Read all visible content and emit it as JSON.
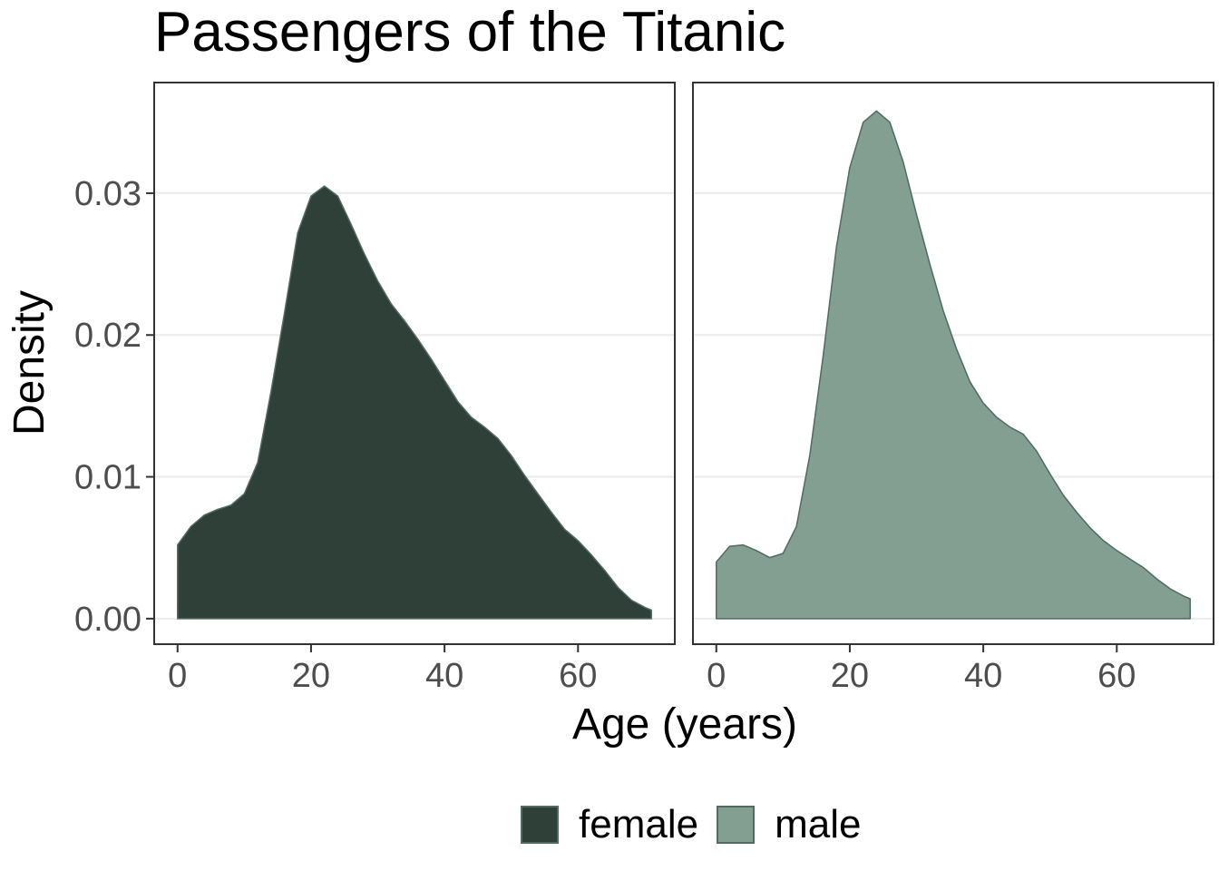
{
  "chart_data": {
    "type": "area",
    "title": "Passengers of the Titanic",
    "xlabel": "Age (years)",
    "ylabel": "Density",
    "xlim": [
      -3.5,
      74.5
    ],
    "ylim": [
      -0.0018,
      0.0378
    ],
    "x_ticks": [
      0,
      20,
      40,
      60
    ],
    "x_tick_labels": [
      "0",
      "20",
      "40",
      "60"
    ],
    "y_ticks": [
      0.0,
      0.01,
      0.02,
      0.03
    ],
    "y_tick_labels": [
      "0.00",
      "0.01",
      "0.02",
      "0.03"
    ],
    "grid": true,
    "legend_position": "bottom",
    "panels": [
      {
        "name": "female",
        "color": "#2e4037",
        "x": [
          0,
          2,
          4,
          6,
          8,
          10,
          12,
          14,
          16,
          18,
          20,
          22,
          24,
          26,
          28,
          30,
          32,
          34,
          36,
          38,
          40,
          42,
          44,
          46,
          48,
          50,
          52,
          54,
          56,
          58,
          60,
          62,
          64,
          66,
          68,
          70,
          71
        ],
        "y": [
          0.0052,
          0.0065,
          0.0073,
          0.0077,
          0.008,
          0.0088,
          0.011,
          0.016,
          0.0215,
          0.0272,
          0.0298,
          0.0305,
          0.0298,
          0.0278,
          0.0257,
          0.0238,
          0.0222,
          0.021,
          0.0197,
          0.0183,
          0.0168,
          0.0153,
          0.0142,
          0.0135,
          0.0127,
          0.0115,
          0.0101,
          0.0088,
          0.0075,
          0.0063,
          0.0055,
          0.0045,
          0.0034,
          0.0022,
          0.0013,
          0.0008,
          0.0006
        ]
      },
      {
        "name": "male",
        "color": "#839f91",
        "x": [
          0,
          2,
          4,
          6,
          8,
          10,
          12,
          14,
          16,
          18,
          20,
          22,
          24,
          26,
          28,
          30,
          32,
          34,
          36,
          38,
          40,
          42,
          44,
          46,
          48,
          50,
          52,
          54,
          56,
          58,
          60,
          62,
          64,
          66,
          68,
          70,
          71
        ],
        "y": [
          0.004,
          0.0051,
          0.0052,
          0.0048,
          0.0043,
          0.0046,
          0.0065,
          0.0115,
          0.0185,
          0.0262,
          0.0318,
          0.035,
          0.0358,
          0.035,
          0.0322,
          0.0285,
          0.025,
          0.0217,
          0.019,
          0.0167,
          0.0152,
          0.0142,
          0.0135,
          0.013,
          0.0118,
          0.0102,
          0.0087,
          0.0075,
          0.0064,
          0.0055,
          0.0048,
          0.0042,
          0.0036,
          0.0028,
          0.0021,
          0.0016,
          0.0014
        ]
      }
    ]
  },
  "legend": {
    "items": [
      {
        "label": "female",
        "color": "#2e4037"
      },
      {
        "label": "male",
        "color": "#839f91"
      }
    ]
  }
}
